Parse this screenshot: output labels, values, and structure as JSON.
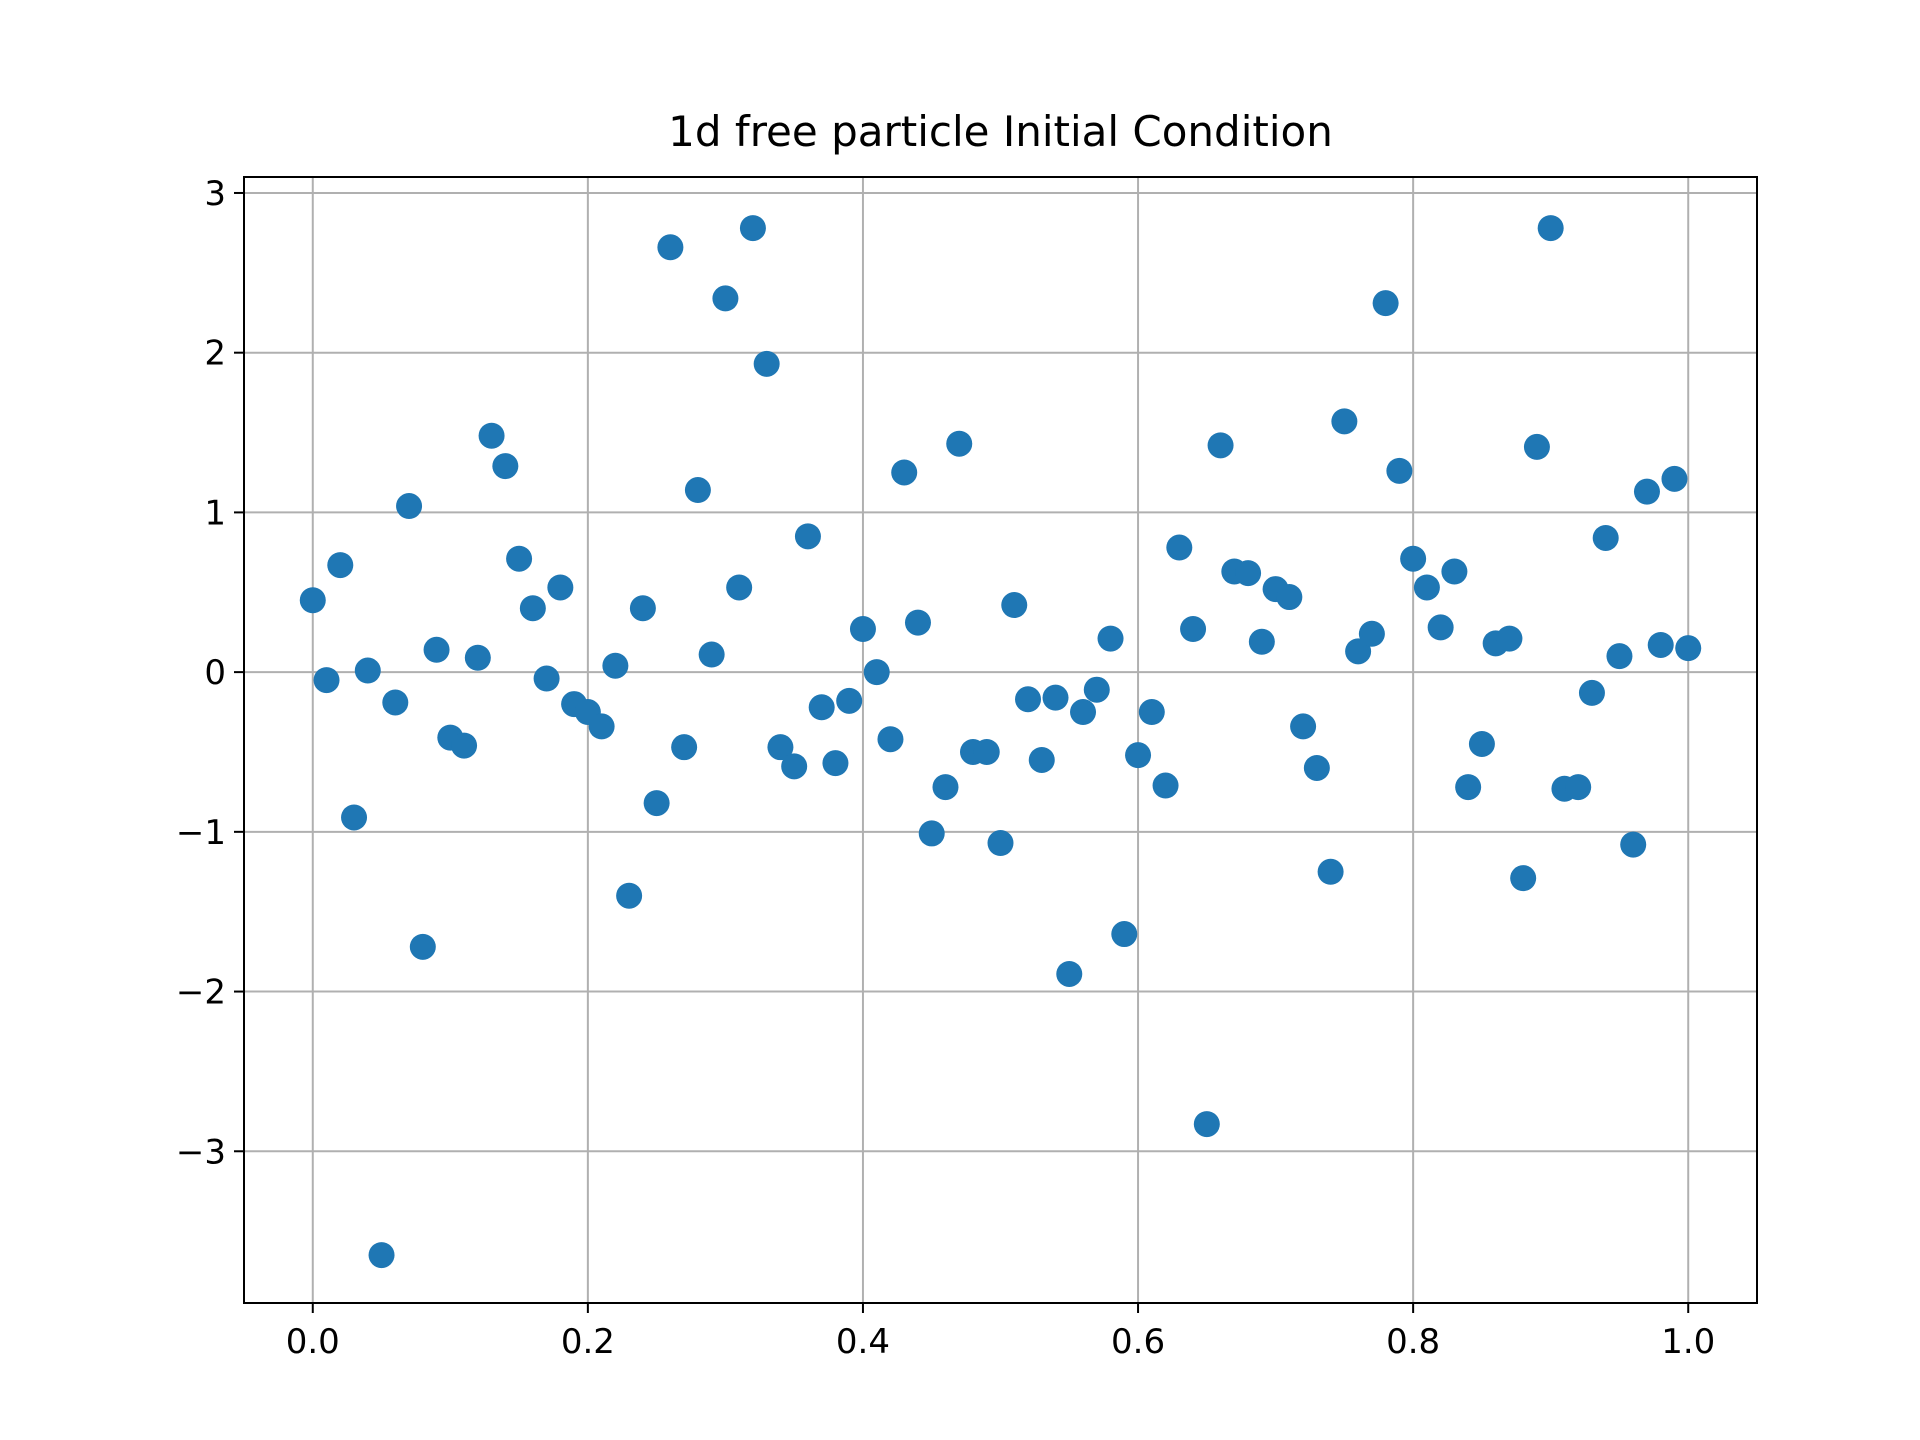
{
  "chart_data": {
    "type": "scatter",
    "title": "1d free particle Initial Condition",
    "xlabel": "",
    "ylabel": "",
    "xlim": [
      -0.05,
      1.05
    ],
    "ylim": [
      -3.95,
      3.1
    ],
    "grid": true,
    "marker_color": "#1f77b4",
    "xticks": [
      0.0,
      0.2,
      0.4,
      0.6,
      0.8,
      1.0
    ],
    "xtick_labels": [
      "0.0",
      "0.2",
      "0.4",
      "0.6",
      "0.8",
      "1.0"
    ],
    "yticks": [
      3,
      2,
      1,
      0,
      -1,
      -2,
      -3
    ],
    "ytick_labels": [
      "3",
      "2",
      "1",
      "0",
      "−1",
      "−2",
      "−3"
    ],
    "x": [
      0.0,
      0.01,
      0.02,
      0.03,
      0.04,
      0.05,
      0.06,
      0.07,
      0.08,
      0.09,
      0.1,
      0.11,
      0.12,
      0.13,
      0.14,
      0.15,
      0.16,
      0.17,
      0.18,
      0.19,
      0.2,
      0.21,
      0.22,
      0.23,
      0.24,
      0.25,
      0.26,
      0.27,
      0.28,
      0.29,
      0.3,
      0.31,
      0.32,
      0.33,
      0.34,
      0.35,
      0.36,
      0.37,
      0.38,
      0.39,
      0.4,
      0.41,
      0.42,
      0.43,
      0.44,
      0.45,
      0.46,
      0.47,
      0.48,
      0.49,
      0.5,
      0.51,
      0.52,
      0.53,
      0.54,
      0.55,
      0.56,
      0.57,
      0.58,
      0.59,
      0.6,
      0.61,
      0.62,
      0.63,
      0.64,
      0.65,
      0.66,
      0.67,
      0.68,
      0.69,
      0.7,
      0.71,
      0.72,
      0.73,
      0.74,
      0.75,
      0.76,
      0.77,
      0.78,
      0.79,
      0.8,
      0.81,
      0.82,
      0.83,
      0.84,
      0.85,
      0.86,
      0.87,
      0.88,
      0.89,
      0.9,
      0.91,
      0.92,
      0.93,
      0.94,
      0.95,
      0.96,
      0.97,
      0.98,
      0.99,
      1.0
    ],
    "y": [
      0.45,
      -0.05,
      0.67,
      -0.91,
      0.01,
      -3.65,
      -0.19,
      1.04,
      -1.72,
      0.14,
      -0.41,
      -0.46,
      0.09,
      1.48,
      1.29,
      0.71,
      0.4,
      -0.04,
      0.53,
      -0.2,
      -0.25,
      -0.34,
      0.04,
      -1.4,
      0.4,
      -0.82,
      2.66,
      -0.47,
      1.14,
      0.11,
      2.34,
      0.53,
      2.78,
      1.93,
      -0.47,
      -0.59,
      0.85,
      -0.22,
      -0.57,
      -0.18,
      0.27,
      0.0,
      -0.42,
      1.25,
      0.31,
      -1.01,
      -0.72,
      1.43,
      -0.5,
      -0.5,
      -1.07,
      0.42,
      -0.17,
      -0.55,
      -0.16,
      -1.89,
      -0.25,
      -0.11,
      0.21,
      -1.64,
      -0.52,
      -0.25,
      -0.71,
      0.78,
      0.27,
      -2.83,
      1.42,
      0.63,
      0.62,
      0.19,
      0.52,
      0.47,
      -0.34,
      -0.6,
      -1.25,
      1.57,
      0.13,
      0.24,
      2.31,
      1.26,
      0.71,
      0.53,
      0.28,
      0.63,
      -0.72,
      -0.45,
      0.18,
      0.21,
      -1.29,
      1.41,
      2.78,
      -0.73,
      -0.72,
      -0.13,
      0.84,
      0.1,
      -1.08,
      1.13,
      0.17,
      1.21,
      0.15
    ]
  }
}
